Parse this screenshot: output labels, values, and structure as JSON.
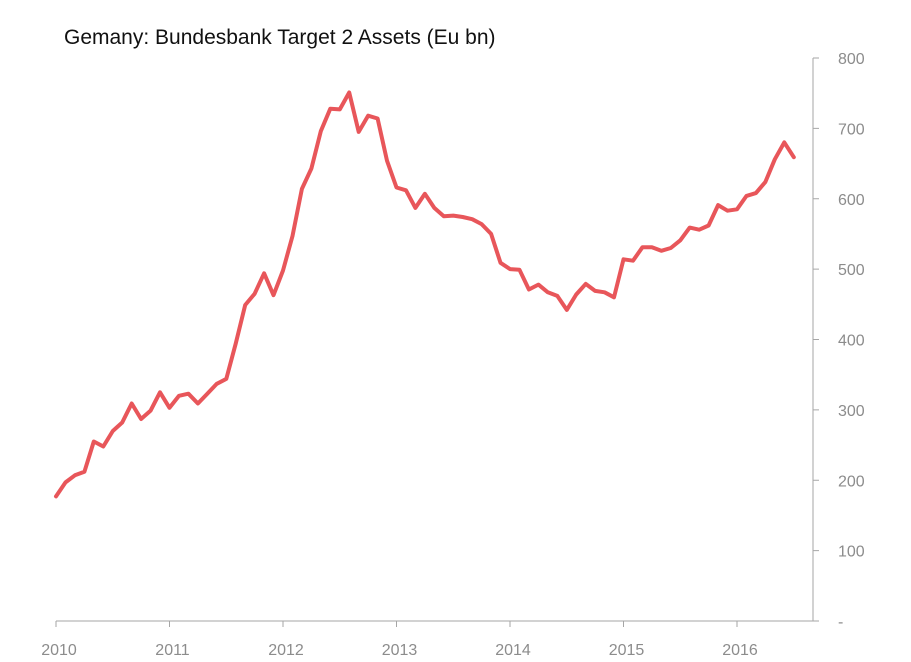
{
  "colors": {
    "series": "#e8565a",
    "axis": "#a6a6a6",
    "tick_text": "#8c8c8c",
    "title_text": "#111111"
  },
  "chart_data": {
    "type": "line",
    "title": "Gemany: Bundesbank Target 2 Assets (Eu bn)",
    "xlabel": "",
    "ylabel": "",
    "ylim": [
      0,
      800
    ],
    "y_ticks": [
      0,
      100,
      200,
      300,
      400,
      500,
      600,
      700,
      800
    ],
    "y_tick_labels": [
      "-",
      "100",
      "200",
      "300",
      "400",
      "500",
      "600",
      "700",
      "800"
    ],
    "y_axis_position": "right",
    "x_ticks": [
      "2010",
      "2011",
      "2012",
      "2013",
      "2014",
      "2015",
      "2016"
    ],
    "grid": false,
    "legend": "none",
    "series": [
      {
        "x": [
          "2010-01",
          "2010-02",
          "2010-03",
          "2010-04",
          "2010-05",
          "2010-06",
          "2010-07",
          "2010-08",
          "2010-09",
          "2010-10",
          "2010-11",
          "2010-12",
          "2011-01",
          "2011-02",
          "2011-03",
          "2011-04",
          "2011-05",
          "2011-06",
          "2011-07",
          "2011-08",
          "2011-09",
          "2011-10",
          "2011-11",
          "2011-12",
          "2012-01",
          "2012-02",
          "2012-03",
          "2012-04",
          "2012-05",
          "2012-06",
          "2012-07",
          "2012-08",
          "2012-09",
          "2012-10",
          "2012-11",
          "2012-12",
          "2013-01",
          "2013-02",
          "2013-03",
          "2013-04",
          "2013-05",
          "2013-06",
          "2013-07",
          "2013-08",
          "2013-09",
          "2013-10",
          "2013-11",
          "2013-12",
          "2014-01",
          "2014-02",
          "2014-03",
          "2014-04",
          "2014-05",
          "2014-06",
          "2014-07",
          "2014-08",
          "2014-09",
          "2014-10",
          "2014-11",
          "2014-12",
          "2015-01",
          "2015-02",
          "2015-03",
          "2015-04",
          "2015-05",
          "2015-06",
          "2015-07",
          "2015-08",
          "2015-09",
          "2015-10",
          "2015-11",
          "2015-12",
          "2016-01",
          "2016-02",
          "2016-03",
          "2016-04",
          "2016-05",
          "2016-06",
          "2016-07"
        ],
        "values": [
          177,
          197,
          207,
          212,
          255,
          248,
          270,
          282,
          309,
          287,
          299,
          325,
          303,
          320,
          323,
          309,
          323,
          337,
          344,
          394,
          449,
          465,
          494,
          463,
          498,
          547,
          614,
          643,
          696,
          728,
          727,
          751,
          695,
          718,
          714,
          654,
          616,
          612,
          587,
          607,
          587,
          575,
          576,
          574,
          571,
          564,
          550,
          509,
          500,
          499,
          471,
          478,
          467,
          462,
          442,
          464,
          479,
          469,
          467,
          460,
          514,
          512,
          531,
          531,
          526,
          530,
          541,
          559,
          556,
          562,
          591,
          583,
          585,
          604,
          608,
          624,
          656,
          680,
          659
        ]
      }
    ]
  }
}
